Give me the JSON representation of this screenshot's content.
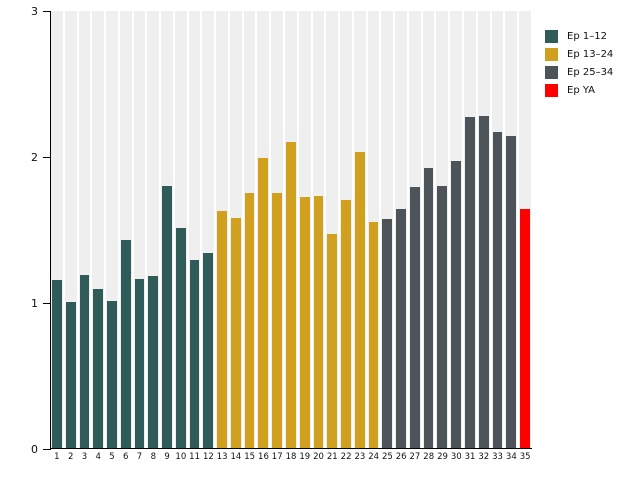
{
  "chart_data": {
    "type": "bar",
    "title": "",
    "xlabel": "",
    "ylabel": "",
    "ylim": [
      0,
      3
    ],
    "yticks": [
      0,
      1,
      2,
      3
    ],
    "grid": false,
    "legend_position": "top-right",
    "plot_stripe_color": "#EFEFEF",
    "axis_color": "#000000",
    "categories": [
      "1",
      "2",
      "3",
      "4",
      "5",
      "6",
      "7",
      "8",
      "9",
      "10",
      "11",
      "12",
      "13",
      "14",
      "15",
      "16",
      "17",
      "18",
      "19",
      "20",
      "21",
      "22",
      "23",
      "24",
      "25",
      "26",
      "27",
      "28",
      "29",
      "30",
      "31",
      "32",
      "33",
      "34",
      "35"
    ],
    "values": [
      1.15,
      1.0,
      1.19,
      1.09,
      1.01,
      1.43,
      1.16,
      1.18,
      1.8,
      1.51,
      1.29,
      1.34,
      1.63,
      1.58,
      1.75,
      1.99,
      1.75,
      2.1,
      1.72,
      1.73,
      1.47,
      1.7,
      2.03,
      1.55,
      1.57,
      1.64,
      1.79,
      1.92,
      1.8,
      1.97,
      2.27,
      2.28,
      2.17,
      2.14,
      1.64
    ],
    "groups": [
      {
        "label": "Ep 1–12",
        "color": "#2F5B58",
        "from": 1,
        "to": 12
      },
      {
        "label": "Ep 13–24",
        "color": "#D2A01F",
        "from": 13,
        "to": 24
      },
      {
        "label": "Ep 25–34",
        "color": "#4C545A",
        "from": 25,
        "to": 34
      },
      {
        "label": "Ep YA",
        "color": "#FF0000",
        "from": 35,
        "to": 35
      }
    ]
  }
}
